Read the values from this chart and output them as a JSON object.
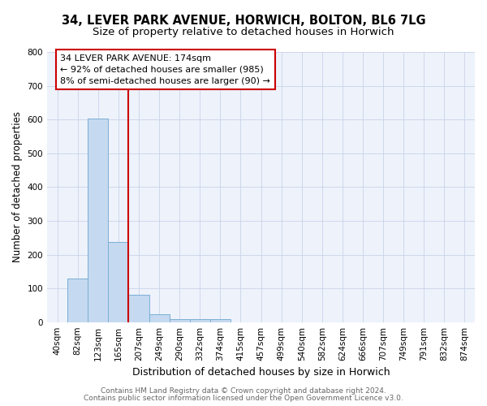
{
  "title_line1": "34, LEVER PARK AVENUE, HORWICH, BOLTON, BL6 7LG",
  "title_line2": "Size of property relative to detached houses in Horwich",
  "xlabel": "Distribution of detached houses by size in Horwich",
  "ylabel": "Number of detached properties",
  "bar_labels": [
    "40sqm",
    "82sqm",
    "123sqm",
    "165sqm",
    "207sqm",
    "249sqm",
    "290sqm",
    "332sqm",
    "374sqm",
    "415sqm",
    "457sqm",
    "499sqm",
    "540sqm",
    "582sqm",
    "624sqm",
    "666sqm",
    "707sqm",
    "749sqm",
    "791sqm",
    "832sqm",
    "874sqm"
  ],
  "bar_values": [
    0,
    130,
    603,
    238,
    80,
    23,
    10,
    8,
    8,
    0,
    0,
    0,
    0,
    0,
    0,
    0,
    0,
    0,
    0,
    0,
    0
  ],
  "bar_color": "#c5d9f0",
  "bar_edge_color": "#7bafd4",
  "vline_x": 3.5,
  "vline_color": "#cc0000",
  "ylim": [
    0,
    800
  ],
  "yticks": [
    0,
    100,
    200,
    300,
    400,
    500,
    600,
    700,
    800
  ],
  "annotation_line1": "34 LEVER PARK AVENUE: 174sqm",
  "annotation_line2": "← 92% of detached houses are smaller (985)",
  "annotation_line3": "8% of semi-detached houses are larger (90) →",
  "annotation_box_color": "#cc0000",
  "footer_line1": "Contains HM Land Registry data © Crown copyright and database right 2024.",
  "footer_line2": "Contains public sector information licensed under the Open Government Licence v3.0.",
  "background_color": "#eef2fb",
  "grid_color": "#c8d4e8",
  "title_fontsize": 10.5,
  "subtitle_fontsize": 9.5,
  "xlabel_fontsize": 9,
  "ylabel_fontsize": 8.5,
  "tick_fontsize": 7.5,
  "annotation_fontsize": 8,
  "footer_fontsize": 6.5
}
